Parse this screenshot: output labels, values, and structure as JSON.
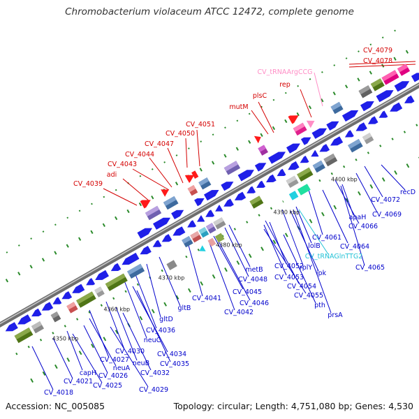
{
  "title": "Chromobacterium violaceum ATCC 12472, complete genome",
  "footer": {
    "accession": "Accession: NC_005085",
    "summary": "Topology: circular; Length: 4,751,080 bp; Genes: 4,530"
  },
  "colors": {
    "forward_label": "#d40000",
    "reverse_label": "#0000cc",
    "trna_forward": "#ff8ec6",
    "trna_reverse": "#22c2d6",
    "cds": "#1f1fe8",
    "backbone": "#8c8c8c",
    "gc_dots": "#2a8a2a"
  },
  "kbp_ticks": [
    "4350 kbp",
    "4360 kbp",
    "4370 kbp",
    "4380 kbp",
    "4390 kbp",
    "4400 kbp"
  ],
  "forward_labels": [
    "CV_4079",
    "CV_4078",
    "CV_tRNAArgCCG",
    "rep",
    "plsC",
    "mutM",
    "CV_4051",
    "CV_4050",
    "CV_4047",
    "CV_4044",
    "CV_4043",
    "adi",
    "CV_4039"
  ],
  "reverse_labels": [
    "recD",
    "CV_4072",
    "CV_4069",
    "CV_4066",
    "apaH",
    "CV_4064",
    "CV_4065",
    "CV_4061",
    "lolB",
    "CV_tRNAGlnTTG2",
    "ipk",
    "rplY",
    "CV_4052",
    "CV_4053",
    "CV_4054",
    "CV_4055",
    "pth",
    "prsA",
    "metB",
    "CV_4048",
    "CV_4045",
    "CV_4046",
    "CV_4041",
    "CV_4042",
    "gltB",
    "gltD",
    "CV_4036",
    "neuC",
    "CV_4034",
    "CV_4035",
    "CV_4030",
    "neuB",
    "CV_4032",
    "CV_4027",
    "neuA",
    "CV_4029",
    "capH",
    "CV_4026",
    "CV_4025",
    "CV_4021",
    "CV_4018"
  ]
}
